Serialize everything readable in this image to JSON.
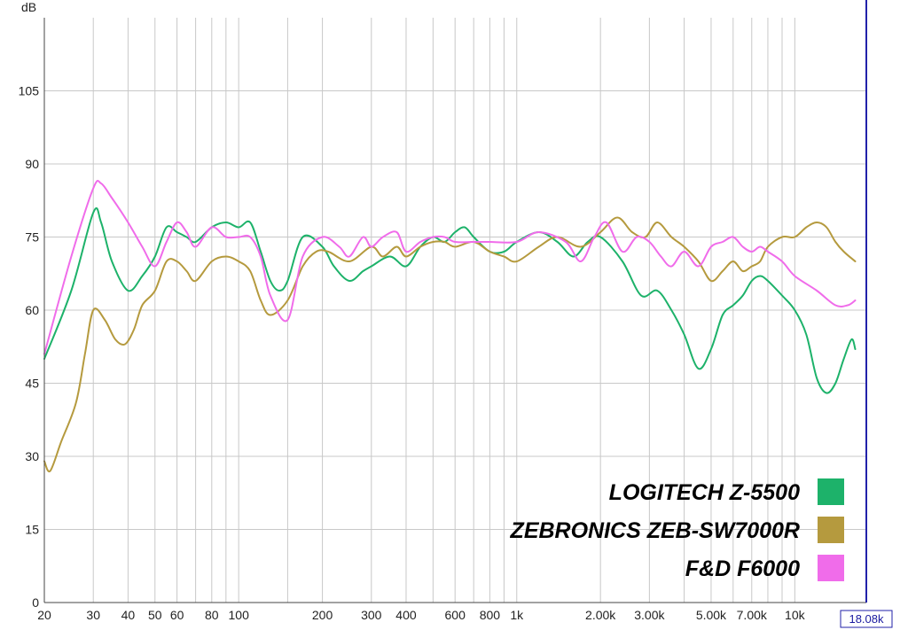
{
  "chart_data": {
    "type": "line",
    "ylabel": "dB",
    "xscale": "log",
    "xlim": [
      20,
      18080
    ],
    "ylim": [
      0,
      120
    ],
    "grid": true,
    "y_ticks": [
      0,
      15,
      30,
      45,
      60,
      75,
      90,
      105
    ],
    "x_ticks": [
      {
        "value": 20,
        "label": "20"
      },
      {
        "value": 30,
        "label": "30"
      },
      {
        "value": 40,
        "label": "40"
      },
      {
        "value": 50,
        "label": "50"
      },
      {
        "value": 60,
        "label": "60"
      },
      {
        "value": 80,
        "label": "80"
      },
      {
        "value": 100,
        "label": "100"
      },
      {
        "value": 200,
        "label": "200"
      },
      {
        "value": 300,
        "label": "300"
      },
      {
        "value": 400,
        "label": "400"
      },
      {
        "value": 600,
        "label": "600"
      },
      {
        "value": 800,
        "label": "800"
      },
      {
        "value": 1000,
        "label": "1k"
      },
      {
        "value": 2000,
        "label": "2.00k"
      },
      {
        "value": 3000,
        "label": "3.00k"
      },
      {
        "value": 5000,
        "label": "5.00k"
      },
      {
        "value": 7000,
        "label": "7.00k"
      },
      {
        "value": 10000,
        "label": "10k"
      }
    ],
    "minor_x_gridlines": [
      70,
      90,
      150,
      500,
      700,
      900,
      4000,
      6000,
      8000,
      9000
    ],
    "cursor": {
      "value": 18080,
      "label": "18.08k",
      "color": "#2222aa"
    },
    "legend_placement": "bottom-right",
    "series": [
      {
        "name": "LOGITECH Z-5500",
        "color": "#1db26a",
        "points": [
          [
            20,
            50
          ],
          [
            25,
            64
          ],
          [
            30,
            80
          ],
          [
            32,
            78
          ],
          [
            35,
            70
          ],
          [
            40,
            64
          ],
          [
            45,
            67
          ],
          [
            50,
            71
          ],
          [
            55,
            77
          ],
          [
            60,
            76
          ],
          [
            65,
            75
          ],
          [
            70,
            74
          ],
          [
            80,
            77
          ],
          [
            90,
            78
          ],
          [
            100,
            77
          ],
          [
            110,
            78
          ],
          [
            120,
            72
          ],
          [
            130,
            66
          ],
          [
            140,
            64
          ],
          [
            150,
            66
          ],
          [
            170,
            75
          ],
          [
            200,
            73
          ],
          [
            220,
            69
          ],
          [
            250,
            66
          ],
          [
            280,
            68
          ],
          [
            300,
            69
          ],
          [
            350,
            71
          ],
          [
            400,
            69
          ],
          [
            450,
            73
          ],
          [
            500,
            75
          ],
          [
            550,
            74
          ],
          [
            600,
            76
          ],
          [
            650,
            77
          ],
          [
            700,
            75
          ],
          [
            800,
            72
          ],
          [
            900,
            72
          ],
          [
            1000,
            74
          ],
          [
            1200,
            76
          ],
          [
            1400,
            74
          ],
          [
            1600,
            71
          ],
          [
            1800,
            74
          ],
          [
            2000,
            75
          ],
          [
            2400,
            70
          ],
          [
            2800,
            63
          ],
          [
            3200,
            64
          ],
          [
            3600,
            60
          ],
          [
            4000,
            55
          ],
          [
            4500,
            48
          ],
          [
            5000,
            52
          ],
          [
            5500,
            59
          ],
          [
            6000,
            61
          ],
          [
            6500,
            63
          ],
          [
            7000,
            66
          ],
          [
            7500,
            67
          ],
          [
            8000,
            66
          ],
          [
            9000,
            63
          ],
          [
            10000,
            60
          ],
          [
            11000,
            55
          ],
          [
            12000,
            46
          ],
          [
            13000,
            43
          ],
          [
            14000,
            45
          ],
          [
            15000,
            50
          ],
          [
            16000,
            54
          ],
          [
            16500,
            52
          ]
        ]
      },
      {
        "name": "ZEBRONICS ZEB-SW7000R",
        "color": "#b59a3e",
        "points": [
          [
            20,
            29
          ],
          [
            21,
            27
          ],
          [
            23,
            33
          ],
          [
            26,
            41
          ],
          [
            28,
            51
          ],
          [
            30,
            60
          ],
          [
            33,
            58
          ],
          [
            36,
            54
          ],
          [
            39,
            53
          ],
          [
            42,
            56
          ],
          [
            45,
            61
          ],
          [
            50,
            64
          ],
          [
            55,
            70
          ],
          [
            60,
            70
          ],
          [
            65,
            68
          ],
          [
            70,
            66
          ],
          [
            80,
            70
          ],
          [
            90,
            71
          ],
          [
            100,
            70
          ],
          [
            110,
            68
          ],
          [
            120,
            62
          ],
          [
            130,
            59
          ],
          [
            150,
            62
          ],
          [
            170,
            69
          ],
          [
            190,
            72
          ],
          [
            210,
            72
          ],
          [
            250,
            70
          ],
          [
            300,
            73
          ],
          [
            330,
            71
          ],
          [
            370,
            73
          ],
          [
            400,
            71
          ],
          [
            450,
            73
          ],
          [
            500,
            74
          ],
          [
            550,
            74
          ],
          [
            600,
            73
          ],
          [
            700,
            74
          ],
          [
            800,
            72
          ],
          [
            900,
            71
          ],
          [
            1000,
            70
          ],
          [
            1200,
            73
          ],
          [
            1400,
            75
          ],
          [
            1700,
            73
          ],
          [
            2000,
            76
          ],
          [
            2300,
            79
          ],
          [
            2600,
            76
          ],
          [
            2900,
            75
          ],
          [
            3200,
            78
          ],
          [
            3600,
            75
          ],
          [
            4000,
            73
          ],
          [
            4500,
            70
          ],
          [
            5000,
            66
          ],
          [
            5500,
            68
          ],
          [
            6000,
            70
          ],
          [
            6500,
            68
          ],
          [
            7000,
            69
          ],
          [
            7500,
            70
          ],
          [
            8000,
            73
          ],
          [
            9000,
            75
          ],
          [
            10000,
            75
          ],
          [
            11000,
            77
          ],
          [
            12000,
            78
          ],
          [
            13000,
            77
          ],
          [
            14000,
            74
          ],
          [
            15000,
            72
          ],
          [
            16500,
            70
          ]
        ]
      },
      {
        "name": "F&D F6000",
        "color": "#f06cea",
        "points": [
          [
            20,
            51
          ],
          [
            25,
            71
          ],
          [
            30,
            85
          ],
          [
            32,
            86
          ],
          [
            35,
            83
          ],
          [
            40,
            78
          ],
          [
            45,
            73
          ],
          [
            50,
            69
          ],
          [
            55,
            74
          ],
          [
            60,
            78
          ],
          [
            65,
            76
          ],
          [
            70,
            73
          ],
          [
            80,
            77
          ],
          [
            90,
            75
          ],
          [
            100,
            75
          ],
          [
            110,
            75
          ],
          [
            120,
            71
          ],
          [
            130,
            63
          ],
          [
            150,
            58
          ],
          [
            170,
            71
          ],
          [
            200,
            75
          ],
          [
            230,
            73
          ],
          [
            250,
            71
          ],
          [
            280,
            75
          ],
          [
            300,
            73
          ],
          [
            330,
            75
          ],
          [
            370,
            76
          ],
          [
            400,
            72
          ],
          [
            450,
            74
          ],
          [
            500,
            75
          ],
          [
            550,
            75
          ],
          [
            600,
            74
          ],
          [
            700,
            74
          ],
          [
            800,
            74
          ],
          [
            1000,
            74
          ],
          [
            1200,
            76
          ],
          [
            1500,
            74
          ],
          [
            1700,
            70
          ],
          [
            1900,
            75
          ],
          [
            2100,
            78
          ],
          [
            2400,
            72
          ],
          [
            2700,
            75
          ],
          [
            3000,
            74
          ],
          [
            3300,
            71
          ],
          [
            3600,
            69
          ],
          [
            4000,
            72
          ],
          [
            4500,
            69
          ],
          [
            5000,
            73
          ],
          [
            5500,
            74
          ],
          [
            6000,
            75
          ],
          [
            6500,
            73
          ],
          [
            7000,
            72
          ],
          [
            7500,
            73
          ],
          [
            8000,
            72
          ],
          [
            9000,
            70
          ],
          [
            10000,
            67
          ],
          [
            12000,
            64
          ],
          [
            14000,
            61
          ],
          [
            15500,
            61
          ],
          [
            16500,
            62
          ]
        ]
      }
    ]
  }
}
